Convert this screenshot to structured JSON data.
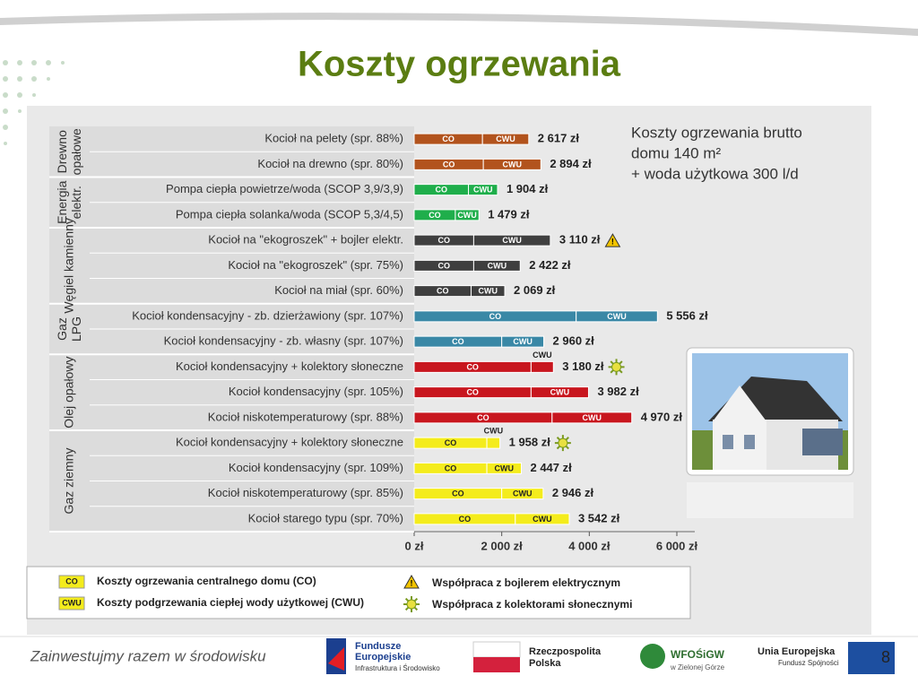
{
  "slide_title": "Koszty ogrzewania",
  "chart_data": {
    "type": "stacked-barh",
    "note": [
      "Koszty ogrzewania brutto",
      "domu 140 m²",
      "+ woda użytkowa 300 l/d"
    ],
    "groups": [
      {
        "name": "Drewno opałowe",
        "color": "#b2531d",
        "text_color": "#ffffff",
        "categories": [
          "Kocioł na pelety (spr. 88%)",
          "Kocioł na drewno (spr. 80%)"
        ]
      },
      {
        "name": "Energia elektr.",
        "color": "#1fae4b",
        "text_color": "#ffffff",
        "categories": [
          "Pompa ciepła powietrze/woda (SCOP 3,9/3,9)",
          "Pompa ciepła solanka/woda (SCOP 5,3/4,5)"
        ]
      },
      {
        "name": "Węgiel kamienny",
        "color": "#3f3f3f",
        "text_color": "#ffffff",
        "categories": [
          "Kocioł na \"ekogroszek\" + bojler elektr.",
          "Kocioł na \"ekogroszek\" (spr. 75%)",
          "Kocioł na miał (spr. 60%)"
        ]
      },
      {
        "name": "Gaz LPG",
        "color": "#3a88a6",
        "text_color": "#ffffff",
        "categories": [
          "Kocioł kondensacyjny - zb. dzierżawiony (spr. 107%)",
          "Kocioł kondensacyjny - zb. własny (spr. 107%)"
        ]
      },
      {
        "name": "Olej opałowy",
        "color": "#c8161e",
        "text_color": "#ffffff",
        "categories": [
          "Kocioł kondensacyjny + kolektory słoneczne",
          "Kocioł kondensacyjny (spr. 105%)",
          "Kocioł niskotemperaturowy (spr. 88%)"
        ]
      },
      {
        "name": "Gaz ziemny",
        "color": "#f4ec1c",
        "text_color": "#222222",
        "categories": [
          "Kocioł kondensacyjny + kolektory słoneczne",
          "Kocioł kondensacyjny (spr. 109%)",
          "Kocioł niskotemperaturowy (spr. 85%)",
          "Kocioł starego typu (spr. 70%)"
        ]
      }
    ],
    "series": [
      {
        "name": "CO",
        "description": "Koszty ogrzewania centralnego domu (CO)",
        "values": [
          1560,
          1580,
          1240,
          940,
          1360,
          1360,
          1300,
          3700,
          2000,
          2670,
          2670,
          3150,
          1660,
          1660,
          2000,
          2310
        ]
      },
      {
        "name": "CWU",
        "description": "Koszty podgrzewania ciepłej wody użytkowej (CWU)",
        "values": [
          1057,
          1314,
          664,
          539,
          1750,
          1062,
          769,
          1856,
          960,
          510,
          1312,
          1820,
          298,
          787,
          946,
          1232
        ]
      }
    ],
    "totals": [
      2617,
      2894,
      1904,
      1479,
      3110,
      2422,
      2069,
      5556,
      2960,
      3180,
      3982,
      4970,
      1958,
      2447,
      2946,
      3542
    ],
    "total_labels": [
      "2 617 zł",
      "2 894 zł",
      "1 904 zł",
      "1 479 zł",
      "3 110 zł",
      "2 422 zł",
      "2 069 zł",
      "5 556 zł",
      "2 960 zł",
      "3 180 zł",
      "3 982 zł",
      "4 970 zł",
      "1 958 zł",
      "2 447 zł",
      "2 946 zł",
      "3 542 zł"
    ],
    "warning_rows": [
      4
    ],
    "sun_rows": [
      9,
      12
    ],
    "warning_label": "Współpraca z bojlerem elektrycznym",
    "sun_label": "Współpraca z kolektorami słonecznymi",
    "xlim": [
      0,
      6000
    ],
    "xticks": [
      {
        "value": 0,
        "label": "0 zł"
      },
      {
        "value": 2000,
        "label": "2 000 zł"
      },
      {
        "value": 4000,
        "label": "4 000 zł"
      },
      {
        "value": 6000,
        "label": "6 000 zł"
      }
    ]
  },
  "footer": {
    "slogan": "Zainwestujmy razem w środowisku",
    "fe": [
      "Fundusze",
      "Europejskie",
      "Infrastruktura i Środowisko"
    ],
    "rp": [
      "Rzeczpospolita",
      "Polska"
    ],
    "wf": [
      "WFOŚiGW",
      "w Zielonej Górze"
    ],
    "ue": [
      "Unia Europejska",
      "Fundusz Spójności"
    ],
    "page": "8"
  }
}
